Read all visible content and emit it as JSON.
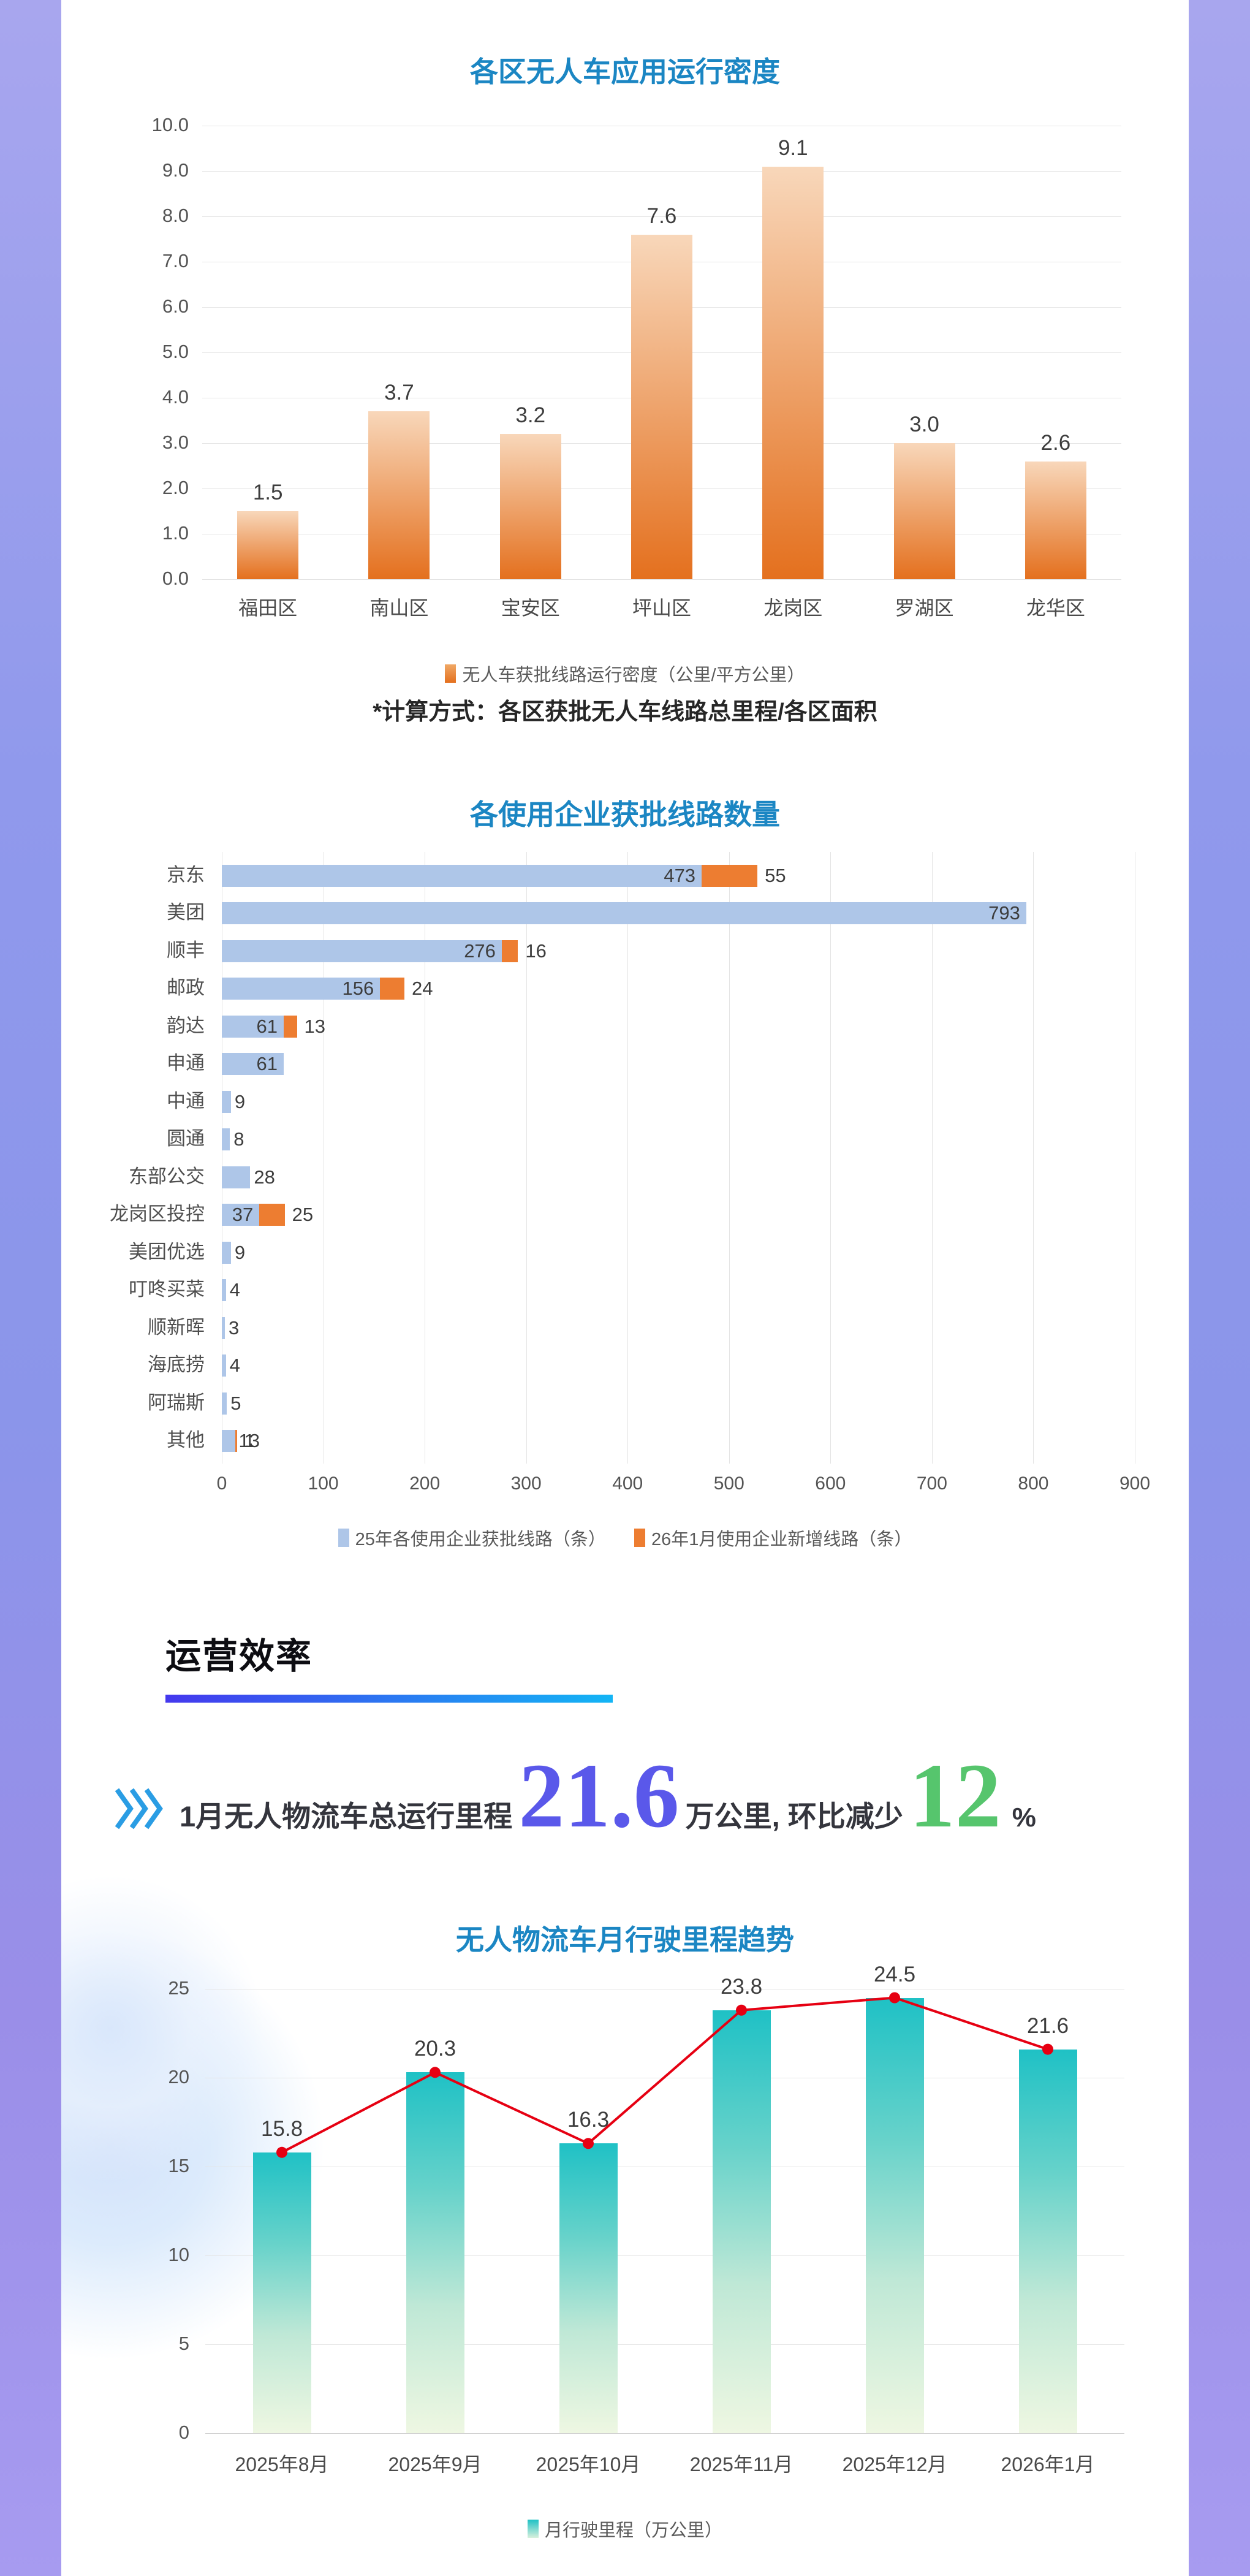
{
  "section": {
    "title": "运营效率"
  },
  "kpi": {
    "icon": "triple-chevron-right",
    "prefix": "1月无人物流车总运行里程",
    "value": "21.6",
    "mid": "万公里, 环比减少",
    "pct": "12",
    "pct_unit": "%",
    "value_color": "#5a58ea",
    "pct_color": "#56c56d"
  },
  "colors": {
    "title_blue": "#1b86c3",
    "accent_underline_from": "#4438ee",
    "accent_underline_to": "#13b5f5",
    "side_strip": "#979ceb",
    "red_line": "#e60012"
  },
  "chart_data": [
    {
      "type": "bar",
      "title": "各区无人车应用运行密度",
      "categories": [
        "福田区",
        "南山区",
        "宝安区",
        "坪山区",
        "龙岗区",
        "罗湖区",
        "龙华区"
      ],
      "values": [
        1.5,
        3.7,
        3.2,
        7.6,
        9.1,
        3.0,
        2.6
      ],
      "ylim": [
        0,
        10
      ],
      "ytick_step": 1,
      "grid": true,
      "legend_position": "bottom",
      "legend_label": "无人车获批线路运行密度（公里/平方公里）",
      "footnote": "*计算方式：各区获批无人车线路总里程/各区面积",
      "bar_color_top": "#f8d7ba",
      "bar_color_bottom": "#e4701e"
    },
    {
      "type": "bar",
      "orientation": "horizontal",
      "title": "各使用企业获批线路数量",
      "categories": [
        "京东",
        "美团",
        "顺丰",
        "邮政",
        "韵达",
        "申通",
        "中通",
        "圆通",
        "东部公交",
        "龙岗区投控",
        "美团优选",
        "叮咚买菜",
        "顺新晖",
        "海底捞",
        "阿瑞斯",
        "其他"
      ],
      "series": [
        {
          "name": "25年各使用企业获批线路（条）",
          "color": "#aec6e8",
          "values": [
            473,
            793,
            276,
            156,
            61,
            61,
            9,
            8,
            28,
            37,
            9,
            4,
            3,
            4,
            5,
            13
          ]
        },
        {
          "name": "26年1月使用企业新增线路（条）",
          "color": "#ed7d31",
          "values": [
            55,
            0,
            16,
            24,
            13,
            0,
            0,
            0,
            0,
            25,
            0,
            0,
            0,
            0,
            0,
            1
          ]
        }
      ],
      "xlim": [
        0,
        900
      ],
      "xtick_step": 100,
      "grid": true,
      "legend_position": "bottom"
    },
    {
      "type": "bar+line",
      "title": "无人物流车月行驶里程趋势",
      "categories": [
        "2025年8月",
        "2025年9月",
        "2025年10月",
        "2025年11月",
        "2025年12月",
        "2026年1月"
      ],
      "values": [
        15.8,
        20.3,
        16.3,
        23.8,
        24.5,
        21.6
      ],
      "ylim": [
        0,
        25
      ],
      "ytick_step": 5,
      "grid": true,
      "legend_position": "bottom",
      "legend_label": "月行驶里程（万公里）",
      "bar_color_top": "#1fc1c5",
      "bar_color_bottom": "#eef7e2",
      "line_color": "#e60012"
    }
  ]
}
